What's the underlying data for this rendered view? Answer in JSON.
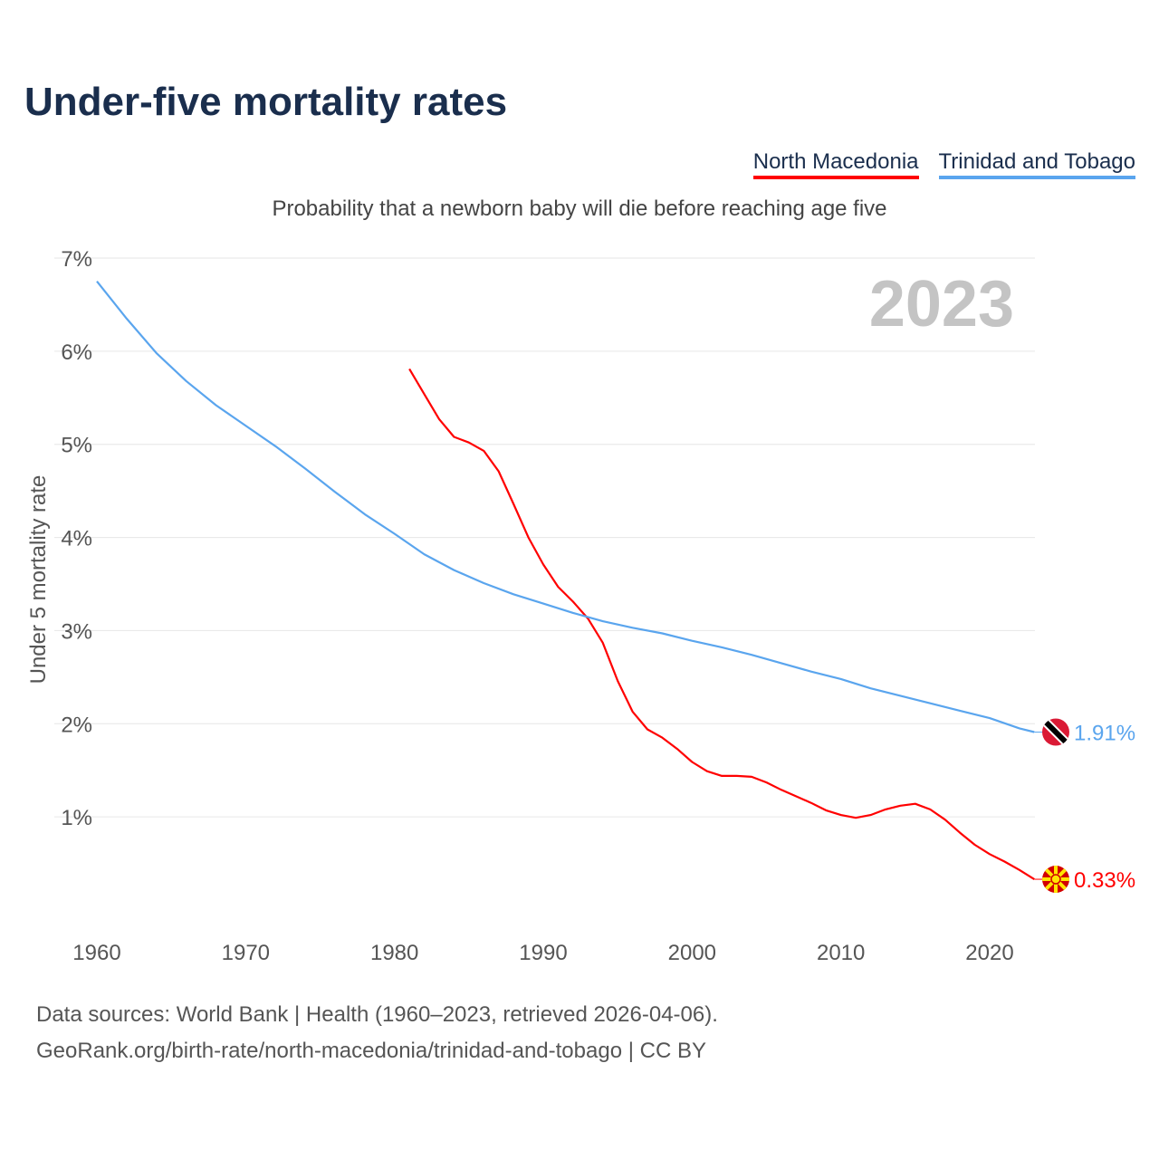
{
  "title": "Under-five mortality rates",
  "subtitle": "Probability that a newborn baby will die before reaching age five",
  "footer": {
    "line1": "Data sources: World Bank | Health (1960–2023, retrieved 2026-04-06).",
    "line2": "GeoRank.org/birth-rate/north-macedonia/trinidad-and-tobago | CC BY"
  },
  "chart_data": {
    "type": "line",
    "title": "Under-five mortality rates",
    "ylabel": "Under 5 mortality rate",
    "xlabel": "",
    "xlim": [
      1960,
      2023
    ],
    "ylim": [
      0,
      7
    ],
    "year_label": "2023",
    "xticks": [
      "1960",
      "1970",
      "1980",
      "1990",
      "2000",
      "2010",
      "2020"
    ],
    "yticks": [
      "1%",
      "2%",
      "3%",
      "4%",
      "5%",
      "6%",
      "7%"
    ],
    "grid": true,
    "legend_position": "top-right",
    "series": [
      {
        "name": "North Macedonia",
        "color": "#ff0000",
        "end_label": "0.33%",
        "flag": "north-macedonia-flag",
        "x": [
          1981,
          1982,
          1983,
          1984,
          1985,
          1986,
          1987,
          1988,
          1989,
          1990,
          1991,
          1992,
          1993,
          1994,
          1995,
          1996,
          1997,
          1998,
          1999,
          2000,
          2001,
          2002,
          2003,
          2004,
          2005,
          2006,
          2007,
          2008,
          2009,
          2010,
          2011,
          2012,
          2013,
          2014,
          2015,
          2016,
          2017,
          2018,
          2019,
          2020,
          2021,
          2022,
          2023
        ],
        "y": [
          5.81,
          5.54,
          5.27,
          5.08,
          5.02,
          4.93,
          4.71,
          4.36,
          4.0,
          3.71,
          3.47,
          3.31,
          3.13,
          2.87,
          2.46,
          2.13,
          1.94,
          1.85,
          1.73,
          1.59,
          1.49,
          1.44,
          1.44,
          1.43,
          1.37,
          1.29,
          1.22,
          1.15,
          1.07,
          1.02,
          0.99,
          1.02,
          1.08,
          1.12,
          1.14,
          1.08,
          0.97,
          0.83,
          0.7,
          0.6,
          0.52,
          0.43,
          0.33
        ]
      },
      {
        "name": "Trinidad and Tobago",
        "color": "#5aa5ee",
        "end_label": "1.91%",
        "flag": "trinidad-and-tobago-flag",
        "x": [
          1960,
          1962,
          1964,
          1966,
          1968,
          1970,
          1972,
          1974,
          1976,
          1978,
          1980,
          1982,
          1984,
          1986,
          1988,
          1990,
          1992,
          1994,
          1996,
          1998,
          2000,
          2002,
          2004,
          2006,
          2008,
          2010,
          2012,
          2014,
          2016,
          2018,
          2020,
          2022,
          2023
        ],
        "y": [
          6.75,
          6.35,
          5.98,
          5.68,
          5.42,
          5.2,
          4.98,
          4.74,
          4.49,
          4.25,
          4.04,
          3.82,
          3.65,
          3.51,
          3.39,
          3.29,
          3.19,
          3.1,
          3.03,
          2.97,
          2.89,
          2.82,
          2.74,
          2.65,
          2.56,
          2.48,
          2.38,
          2.3,
          2.22,
          2.14,
          2.06,
          1.95,
          1.91
        ]
      }
    ]
  }
}
